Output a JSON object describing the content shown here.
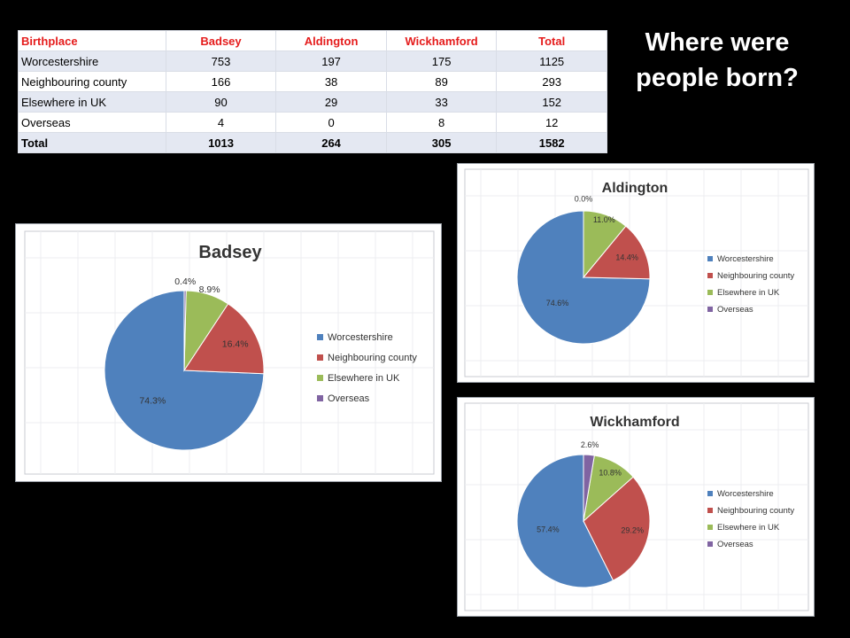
{
  "page": {
    "title": "Where were people born?"
  },
  "table": {
    "headers": [
      "Birthplace",
      "Badsey",
      "Aldington",
      "Wickhamford",
      "Total"
    ],
    "rows": [
      [
        "Worcestershire",
        "753",
        "197",
        "175",
        "1125"
      ],
      [
        "Neighbouring county",
        "166",
        "38",
        "89",
        "293"
      ],
      [
        "Elsewhere in UK",
        "90",
        "29",
        "33",
        "152"
      ],
      [
        "Overseas",
        "4",
        "0",
        "8",
        "12"
      ],
      [
        "Total",
        "1013",
        "264",
        "305",
        "1582"
      ]
    ]
  },
  "colors": {
    "Worcestershire": "#4f81bd",
    "Neighbouring county": "#c0504d",
    "Elsewhere in UK": "#9bbb59",
    "Overseas": "#8064a2"
  },
  "chart_data": [
    {
      "type": "pie",
      "title": "Badsey",
      "legend_position": "right",
      "categories": [
        "Worcestershire",
        "Neighbouring county",
        "Elsewhere in UK",
        "Overseas"
      ],
      "values": [
        753,
        166,
        90,
        4
      ],
      "labels": [
        "74.3%",
        "16.4%",
        "8.9%",
        "0.4%"
      ]
    },
    {
      "type": "pie",
      "title": "Aldington",
      "legend_position": "right",
      "categories": [
        "Worcestershire",
        "Neighbouring county",
        "Elsewhere in UK",
        "Overseas"
      ],
      "values": [
        197,
        38,
        29,
        0
      ],
      "labels": [
        "74.6%",
        "14.4%",
        "11.0%",
        "0.0%"
      ]
    },
    {
      "type": "pie",
      "title": "Wickhamford",
      "legend_position": "right",
      "categories": [
        "Worcestershire",
        "Neighbouring county",
        "Elsewhere in UK",
        "Overseas"
      ],
      "values": [
        175,
        89,
        33,
        8
      ],
      "labels": [
        "57.4%",
        "29.2%",
        "10.8%",
        "2.6%"
      ]
    }
  ]
}
